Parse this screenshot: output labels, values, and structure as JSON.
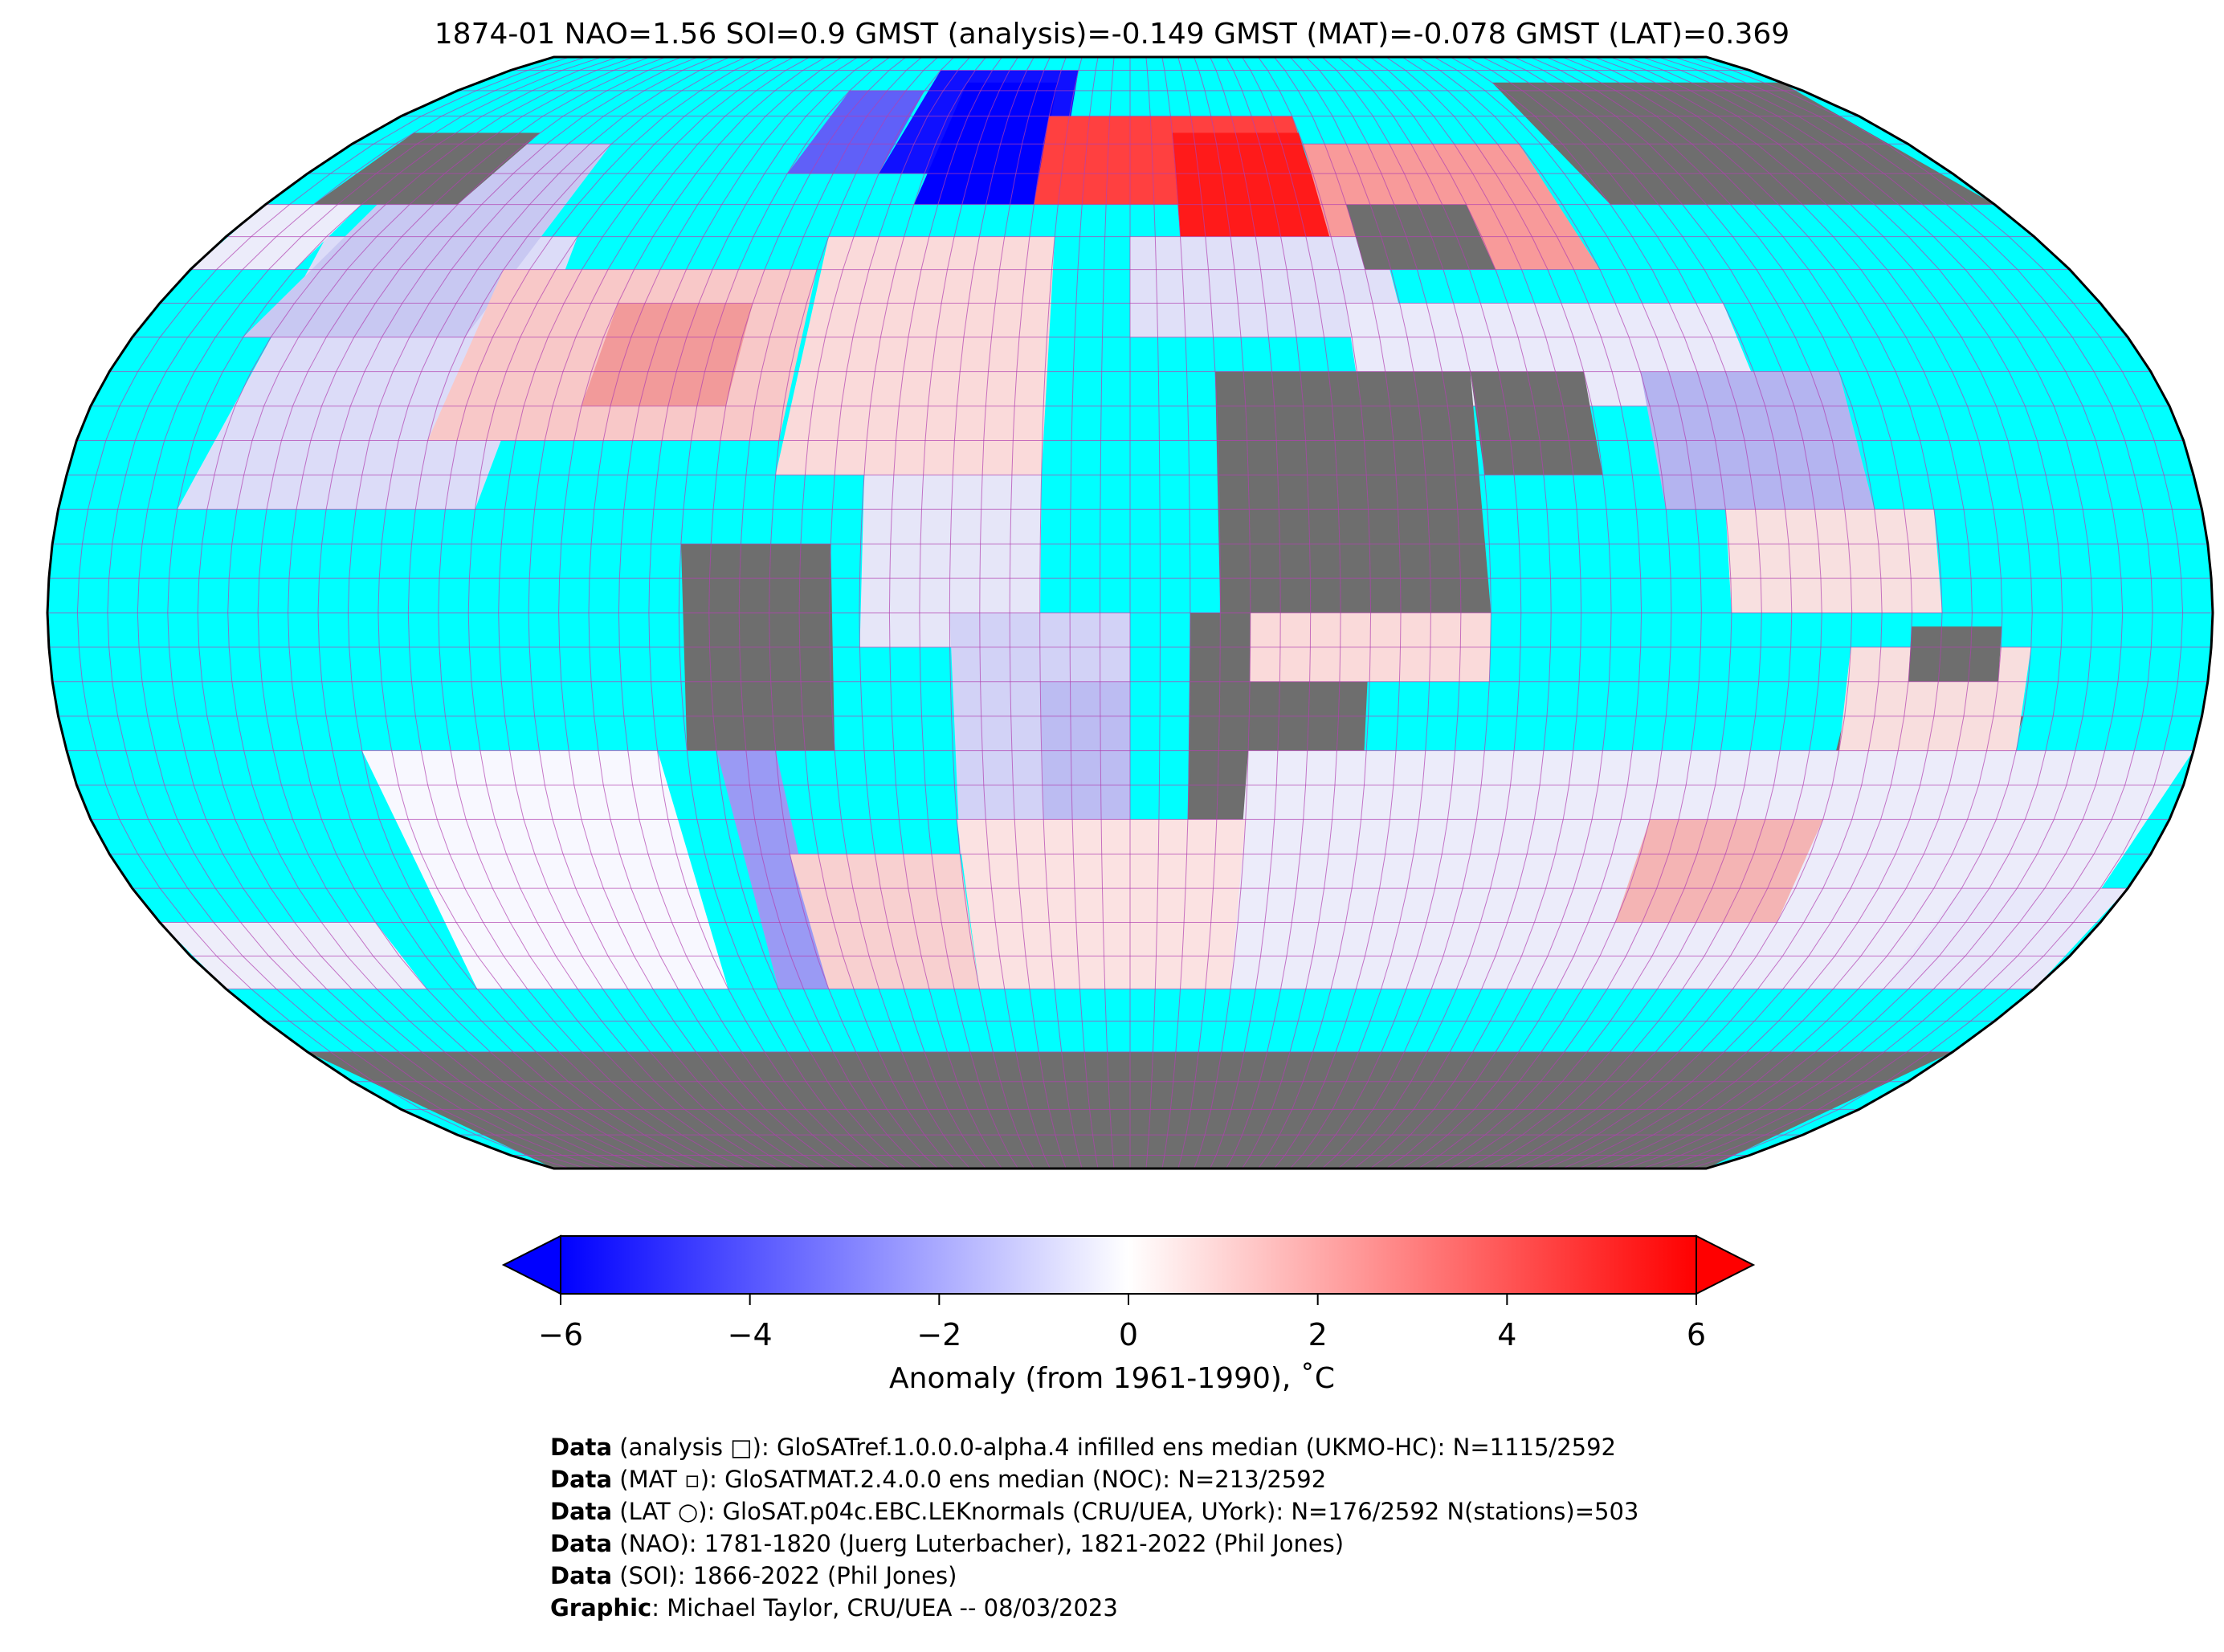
{
  "title": "1874-01 NAO=1.56 SOI=0.9 GMST (analysis)=-0.149 GMST (MAT)=-0.078 GMST (LAT)=0.369",
  "colors": {
    "ocean_nodata": "#00ffff",
    "land_nodata": "#6e6e6e",
    "grid": "#b040b0",
    "cold": "#0000ff",
    "warm": "#ff0000"
  },
  "chart_data": {
    "type": "heatmap",
    "projection": "Robinson",
    "title": "1874-01 NAO=1.56 SOI=0.9 GMST (analysis)=-0.149 GMST (MAT)=-0.078 GMST (LAT)=0.369",
    "grid_resolution_deg": 5,
    "colorbar": {
      "label": "Anomaly (from 1961-1990), ˚C",
      "range": [
        -6,
        6
      ],
      "ticks": [
        "−6",
        "−4",
        "−2",
        "0",
        "2",
        "4",
        "6"
      ],
      "tick_values": [
        -6,
        -4,
        -2,
        0,
        2,
        4,
        6
      ],
      "extend": "both",
      "colormap": "bwr"
    }
  },
  "footer": [
    {
      "bold": "Data",
      "text": " (analysis □): GloSATref.1.0.0.0-alpha.4 infilled ens median (UKMO-HC): N=1115/2592"
    },
    {
      "bold": "Data",
      "text": " (MAT ▫): GloSATMAT.2.4.0.0 ens median (NOC): N=213/2592"
    },
    {
      "bold": "Data",
      "text": " (LAT ○): GloSAT.p04c.EBC.LEKnormals (CRU/UEA, UYork): N=176/2592 N(stations)=503"
    },
    {
      "bold": "Data",
      "text": " (NAO): 1781-1820 (Juerg Luterbacher), 1821-2022 (Phil Jones)"
    },
    {
      "bold": "Data",
      "text": " (SOI): 1866-2022 (Phil Jones)"
    },
    {
      "bold": "Graphic",
      "text": ": Michael Taylor, CRU/UEA -- 08/03/2023"
    }
  ]
}
